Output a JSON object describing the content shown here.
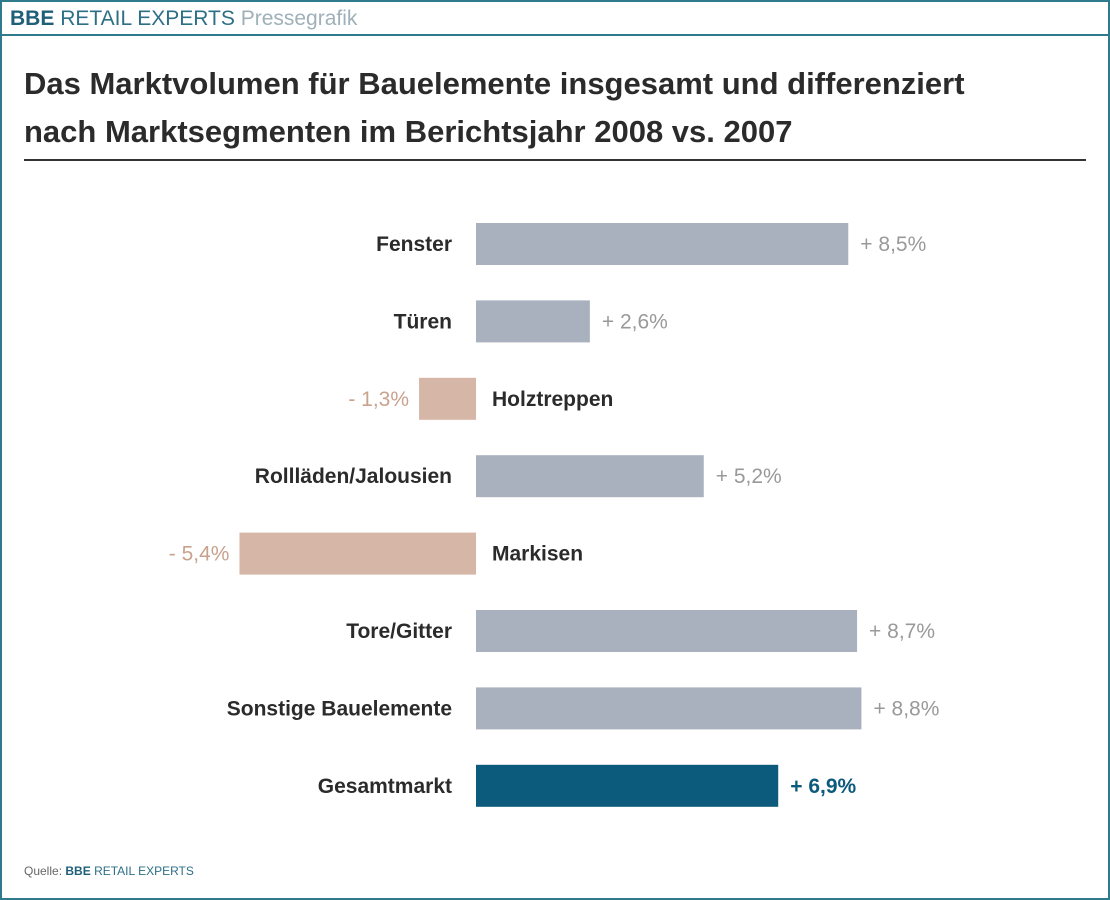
{
  "header": {
    "brand_bold": "BBE",
    "brand": "RETAIL EXPERTS",
    "tag": "Pressegrafik"
  },
  "title_line1": "Das Marktvolumen für Bauelemente insgesamt und differenziert",
  "title_line2": "nach Marktsegmenten im Berichtsjahr 2008 vs. 2007",
  "source": {
    "label": "Quelle:",
    "brand_bold": "BBE",
    "brand": "RETAIL EXPERTS"
  },
  "colors": {
    "positive": "#aab1be",
    "negative": "#d6b6a6",
    "total": "#0c5a7c",
    "value_label": "#999999"
  },
  "chart_data": {
    "type": "bar",
    "orientation": "horizontal",
    "unit": "%",
    "categories": [
      "Fenster",
      "Türen",
      "Holztreppen",
      "Rollläden/Jalousien",
      "Markisen",
      "Tore/Gitter",
      "Sonstige Bauelemente",
      "Gesamtmarkt"
    ],
    "values": [
      8.5,
      2.6,
      -1.3,
      5.2,
      -5.4,
      8.7,
      8.8,
      6.9
    ],
    "labels": [
      "+ 8,5%",
      "+ 2,6%",
      "- 1,3%",
      "+ 5,2%",
      "- 5,4%",
      "+ 8,7%",
      "+ 8,8%",
      "+ 6,9%"
    ],
    "grid": false
  }
}
